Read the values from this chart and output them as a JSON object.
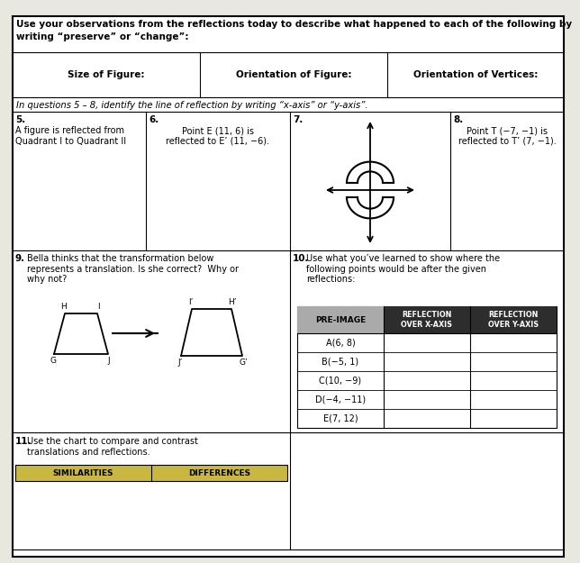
{
  "bg_color": "#e8e8e0",
  "paper_color": "#ffffff",
  "border_color": "#000000",
  "header_text_line1": "Use your observations from the reflections today to describe what happened to each of the following by",
  "header_text_line2": "writing “preserve” or “change”:",
  "col1_header": "Size of Figure:",
  "col2_header": "Orientation of Figure:",
  "col3_header": "Orientation of Vertices:",
  "q58_text": "In questions 5 – 8, identify the line of reflection by writing “x-axis” or “y-axis”.",
  "q5_label": "5.",
  "q5_text": "A figure is reflected from\nQuadrant I to Quadrant II",
  "q6_label": "6.",
  "q6_text": "Point E (11, 6) is\nreflected to E’ (11, −6).",
  "q7_label": "7.",
  "q8_label": "8.",
  "q8_text": "Point T (−7, −1) is\nreflected to T’ (7, −1).",
  "q9_label": "9.",
  "q9_text": "Bella thinks that the transformation below\nrepresents a translation. Is she correct?  Why or\nwhy not?",
  "q10_label": "10.",
  "q10_text": "Use what you’ve learned to show where the\nfollowing points would be after the given\nreflections:",
  "q11_label": "11.",
  "q11_text": "Use the chart to compare and contrast\ntranslations and reflections.",
  "table_col0_header": "PRE-IMAGE",
  "table_col1_header": "REFLECTION\nOVER X-AXIS",
  "table_col2_header": "REFLECTION\nOVER Y-AXIS",
  "table_rows": [
    "A(6, 8)",
    "B(−5, 1)",
    "C(10, −9)",
    "D(−4, −11)",
    "E(7, 12)"
  ],
  "similarities_label": "SIMILARITIES",
  "differences_label": "DIFFERENCES",
  "header_bg": "#f5f5f5",
  "table_hdr_dark": "#3a3a3a",
  "table_hdr_mid": "#888888",
  "sim_band_color": "#c8b840"
}
